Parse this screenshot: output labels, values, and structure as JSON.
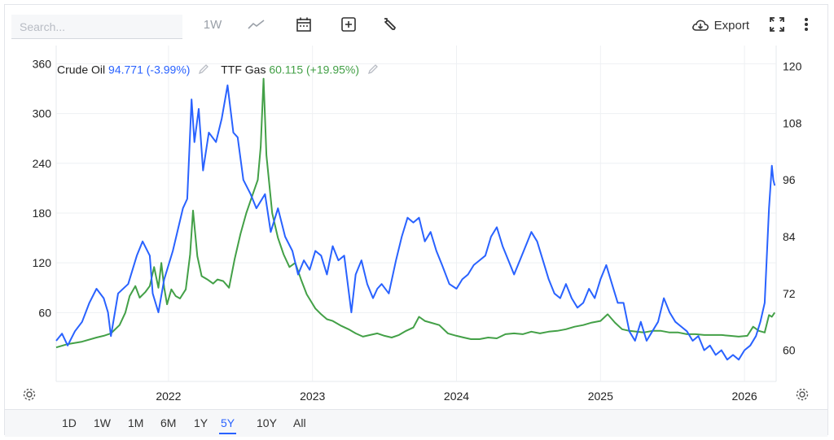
{
  "search": {
    "placeholder": "Search..."
  },
  "toolbar": {
    "interval_label": "1W",
    "export_label": "Export"
  },
  "legend": [
    {
      "name": "Crude Oil",
      "value": "94.771",
      "change": "(-3.99%)",
      "color": "#2962ff"
    },
    {
      "name": "TTF Gas",
      "value": "60.115",
      "change": "(+19.95%)",
      "color": "#43a047"
    }
  ],
  "ranges": [
    "1D",
    "1W",
    "1M",
    "6M",
    "1Y",
    "5Y",
    "10Y",
    "All"
  ],
  "active_range": "5Y",
  "colors": {
    "crude": "#2962ff",
    "gas": "#43a047",
    "accent": "#2962ff"
  },
  "chart_data": {
    "type": "line",
    "x_ticks": [
      "2022",
      "2023",
      "2024",
      "2025",
      "2026"
    ],
    "left_axis": {
      "ticks": [
        60,
        120,
        180,
        240,
        300,
        360
      ],
      "range": [
        -23,
        382
      ]
    },
    "right_axis": {
      "ticks": [
        60,
        72,
        84,
        96,
        108,
        120
      ],
      "range": [
        53.4,
        124.4
      ]
    },
    "x_range": [
      2021.22,
      2026.22
    ],
    "grid": true,
    "series": [
      {
        "name": "Crude Oil",
        "axis": "right",
        "color": "#2962ff",
        "points": [
          [
            2021.22,
            62
          ],
          [
            2021.26,
            63.5
          ],
          [
            2021.3,
            61
          ],
          [
            2021.35,
            64
          ],
          [
            2021.4,
            66
          ],
          [
            2021.45,
            70
          ],
          [
            2021.5,
            73
          ],
          [
            2021.55,
            71
          ],
          [
            2021.58,
            68
          ],
          [
            2021.6,
            63
          ],
          [
            2021.65,
            72
          ],
          [
            2021.72,
            74
          ],
          [
            2021.78,
            80
          ],
          [
            2021.82,
            83
          ],
          [
            2021.87,
            80
          ],
          [
            2021.89,
            72
          ],
          [
            2021.93,
            68
          ],
          [
            2021.97,
            75
          ],
          [
            2022.03,
            81
          ],
          [
            2022.1,
            90
          ],
          [
            2022.13,
            92
          ],
          [
            2022.16,
            113
          ],
          [
            2022.18,
            104
          ],
          [
            2022.21,
            111
          ],
          [
            2022.24,
            98
          ],
          [
            2022.28,
            106
          ],
          [
            2022.33,
            104
          ],
          [
            2022.37,
            109
          ],
          [
            2022.41,
            116
          ],
          [
            2022.45,
            106
          ],
          [
            2022.48,
            105
          ],
          [
            2022.52,
            96
          ],
          [
            2022.57,
            93
          ],
          [
            2022.61,
            90
          ],
          [
            2022.67,
            93
          ],
          [
            2022.71,
            85
          ],
          [
            2022.76,
            90
          ],
          [
            2022.81,
            84
          ],
          [
            2022.86,
            81
          ],
          [
            2022.9,
            76
          ],
          [
            2022.94,
            79
          ],
          [
            2022.98,
            77
          ],
          [
            2023.02,
            81
          ],
          [
            2023.06,
            80
          ],
          [
            2023.1,
            76
          ],
          [
            2023.14,
            82
          ],
          [
            2023.18,
            79
          ],
          [
            2023.22,
            80
          ],
          [
            2023.27,
            68
          ],
          [
            2023.3,
            76
          ],
          [
            2023.34,
            79
          ],
          [
            2023.38,
            74
          ],
          [
            2023.42,
            71
          ],
          [
            2023.45,
            73
          ],
          [
            2023.48,
            74
          ],
          [
            2023.53,
            72
          ],
          [
            2023.58,
            79
          ],
          [
            2023.62,
            84
          ],
          [
            2023.66,
            88
          ],
          [
            2023.7,
            87
          ],
          [
            2023.74,
            88
          ],
          [
            2023.78,
            83
          ],
          [
            2023.82,
            85
          ],
          [
            2023.86,
            81
          ],
          [
            2023.9,
            78
          ],
          [
            2023.95,
            74
          ],
          [
            2024.0,
            73
          ],
          [
            2024.04,
            75
          ],
          [
            2024.08,
            76
          ],
          [
            2024.12,
            78
          ],
          [
            2024.16,
            79
          ],
          [
            2024.2,
            80
          ],
          [
            2024.24,
            84
          ],
          [
            2024.28,
            86
          ],
          [
            2024.32,
            82
          ],
          [
            2024.36,
            79
          ],
          [
            2024.4,
            76
          ],
          [
            2024.44,
            79
          ],
          [
            2024.48,
            82
          ],
          [
            2024.52,
            85
          ],
          [
            2024.56,
            83
          ],
          [
            2024.6,
            79
          ],
          [
            2024.64,
            75
          ],
          [
            2024.68,
            72
          ],
          [
            2024.72,
            71
          ],
          [
            2024.76,
            74
          ],
          [
            2024.8,
            71
          ],
          [
            2024.84,
            69
          ],
          [
            2024.88,
            70
          ],
          [
            2024.92,
            73
          ],
          [
            2024.96,
            71
          ],
          [
            2025.0,
            75
          ],
          [
            2025.04,
            78
          ],
          [
            2025.08,
            74
          ],
          [
            2025.12,
            70
          ],
          [
            2025.16,
            70
          ],
          [
            2025.2,
            64
          ],
          [
            2025.24,
            62
          ],
          [
            2025.28,
            66
          ],
          [
            2025.32,
            62
          ],
          [
            2025.36,
            64
          ],
          [
            2025.4,
            66
          ],
          [
            2025.44,
            71
          ],
          [
            2025.48,
            68
          ],
          [
            2025.52,
            66
          ],
          [
            2025.56,
            65
          ],
          [
            2025.6,
            64
          ],
          [
            2025.64,
            62
          ],
          [
            2025.68,
            63
          ],
          [
            2025.72,
            60
          ],
          [
            2025.76,
            61
          ],
          [
            2025.8,
            59
          ],
          [
            2025.84,
            60
          ],
          [
            2025.88,
            58
          ],
          [
            2025.92,
            59
          ],
          [
            2025.96,
            58
          ],
          [
            2026.0,
            60
          ],
          [
            2026.04,
            61
          ],
          [
            2026.08,
            63
          ],
          [
            2026.11,
            66
          ],
          [
            2026.14,
            70
          ],
          [
            2026.17,
            90
          ],
          [
            2026.19,
            99
          ],
          [
            2026.2,
            96
          ],
          [
            2026.21,
            94.8
          ]
        ]
      },
      {
        "name": "TTF Gas",
        "axis": "left",
        "color": "#43a047",
        "points": [
          [
            2021.22,
            18
          ],
          [
            2021.3,
            22
          ],
          [
            2021.4,
            25
          ],
          [
            2021.5,
            30
          ],
          [
            2021.55,
            32
          ],
          [
            2021.6,
            35
          ],
          [
            2021.66,
            45
          ],
          [
            2021.7,
            60
          ],
          [
            2021.73,
            80
          ],
          [
            2021.77,
            92
          ],
          [
            2021.8,
            78
          ],
          [
            2021.84,
            85
          ],
          [
            2021.87,
            92
          ],
          [
            2021.9,
            115
          ],
          [
            2021.93,
            90
          ],
          [
            2021.95,
            120
          ],
          [
            2021.97,
            90
          ],
          [
            2021.99,
            70
          ],
          [
            2022.02,
            88
          ],
          [
            2022.05,
            80
          ],
          [
            2022.08,
            77
          ],
          [
            2022.12,
            88
          ],
          [
            2022.15,
            130
          ],
          [
            2022.17,
            183
          ],
          [
            2022.2,
            128
          ],
          [
            2022.23,
            104
          ],
          [
            2022.27,
            100
          ],
          [
            2022.31,
            95
          ],
          [
            2022.34,
            100
          ],
          [
            2022.38,
            98
          ],
          [
            2022.42,
            90
          ],
          [
            2022.46,
            125
          ],
          [
            2022.5,
            155
          ],
          [
            2022.54,
            180
          ],
          [
            2022.58,
            200
          ],
          [
            2022.62,
            220
          ],
          [
            2022.64,
            260
          ],
          [
            2022.66,
            342
          ],
          [
            2022.68,
            250
          ],
          [
            2022.72,
            180
          ],
          [
            2022.76,
            150
          ],
          [
            2022.8,
            130
          ],
          [
            2022.84,
            115
          ],
          [
            2022.88,
            120
          ],
          [
            2022.92,
            100
          ],
          [
            2022.96,
            82
          ],
          [
            2023.02,
            65
          ],
          [
            2023.06,
            58
          ],
          [
            2023.1,
            52
          ],
          [
            2023.14,
            50
          ],
          [
            2023.2,
            44
          ],
          [
            2023.25,
            40
          ],
          [
            2023.3,
            35
          ],
          [
            2023.35,
            31
          ],
          [
            2023.4,
            33
          ],
          [
            2023.45,
            35
          ],
          [
            2023.5,
            32
          ],
          [
            2023.55,
            30
          ],
          [
            2023.6,
            33
          ],
          [
            2023.65,
            38
          ],
          [
            2023.7,
            42
          ],
          [
            2023.74,
            55
          ],
          [
            2023.78,
            50
          ],
          [
            2023.82,
            48
          ],
          [
            2023.88,
            45
          ],
          [
            2023.94,
            35
          ],
          [
            2024.0,
            32
          ],
          [
            2024.05,
            30
          ],
          [
            2024.1,
            28
          ],
          [
            2024.16,
            28
          ],
          [
            2024.22,
            30
          ],
          [
            2024.28,
            29
          ],
          [
            2024.34,
            34
          ],
          [
            2024.4,
            35
          ],
          [
            2024.46,
            34
          ],
          [
            2024.52,
            37
          ],
          [
            2024.58,
            35
          ],
          [
            2024.64,
            37
          ],
          [
            2024.7,
            38
          ],
          [
            2024.76,
            40
          ],
          [
            2024.82,
            43
          ],
          [
            2024.88,
            45
          ],
          [
            2024.94,
            48
          ],
          [
            2025.0,
            50
          ],
          [
            2025.05,
            58
          ],
          [
            2025.1,
            48
          ],
          [
            2025.15,
            40
          ],
          [
            2025.2,
            38
          ],
          [
            2025.25,
            37
          ],
          [
            2025.3,
            36
          ],
          [
            2025.36,
            38
          ],
          [
            2025.42,
            38
          ],
          [
            2025.48,
            36
          ],
          [
            2025.54,
            36
          ],
          [
            2025.6,
            34
          ],
          [
            2025.66,
            34
          ],
          [
            2025.72,
            33
          ],
          [
            2025.78,
            33
          ],
          [
            2025.84,
            33
          ],
          [
            2025.9,
            32
          ],
          [
            2025.96,
            31
          ],
          [
            2026.02,
            32
          ],
          [
            2026.06,
            43
          ],
          [
            2026.1,
            38
          ],
          [
            2026.14,
            36
          ],
          [
            2026.17,
            57
          ],
          [
            2026.19,
            55
          ],
          [
            2026.21,
            60.1
          ]
        ]
      }
    ]
  }
}
